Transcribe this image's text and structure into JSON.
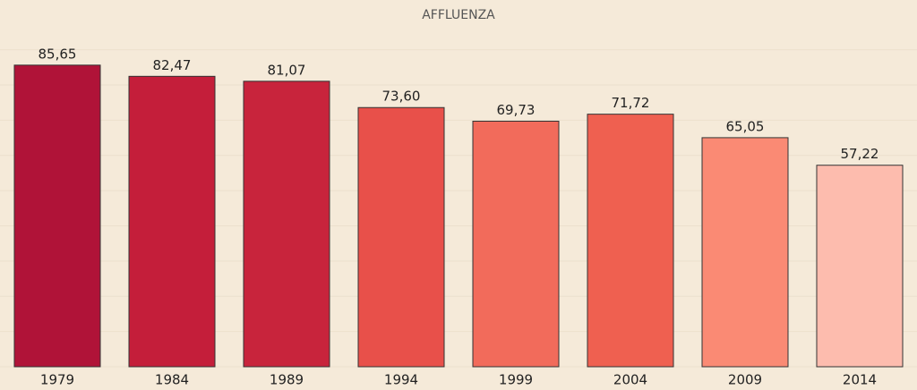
{
  "chart_data": {
    "type": "bar",
    "title": "AFFLUENZA",
    "categories": [
      "1979",
      "1984",
      "1989",
      "1994",
      "1999",
      "2004",
      "2009",
      "2014"
    ],
    "values": [
      85.65,
      82.47,
      81.07,
      73.6,
      69.73,
      71.72,
      65.05,
      57.22
    ],
    "value_labels": [
      "85,65",
      "82,47",
      "81,07",
      "73,60",
      "69,73",
      "71,72",
      "65,05",
      "57,22"
    ],
    "colors": [
      "#b01338",
      "#c41e3a",
      "#c8243c",
      "#e8504a",
      "#f26b5b",
      "#ef6050",
      "#fa8a74",
      "#fdbcae"
    ],
    "ylim": [
      0,
      95
    ],
    "yticks": [
      0,
      10,
      20,
      30,
      40,
      50,
      60,
      70,
      80,
      90
    ],
    "grid": true
  }
}
